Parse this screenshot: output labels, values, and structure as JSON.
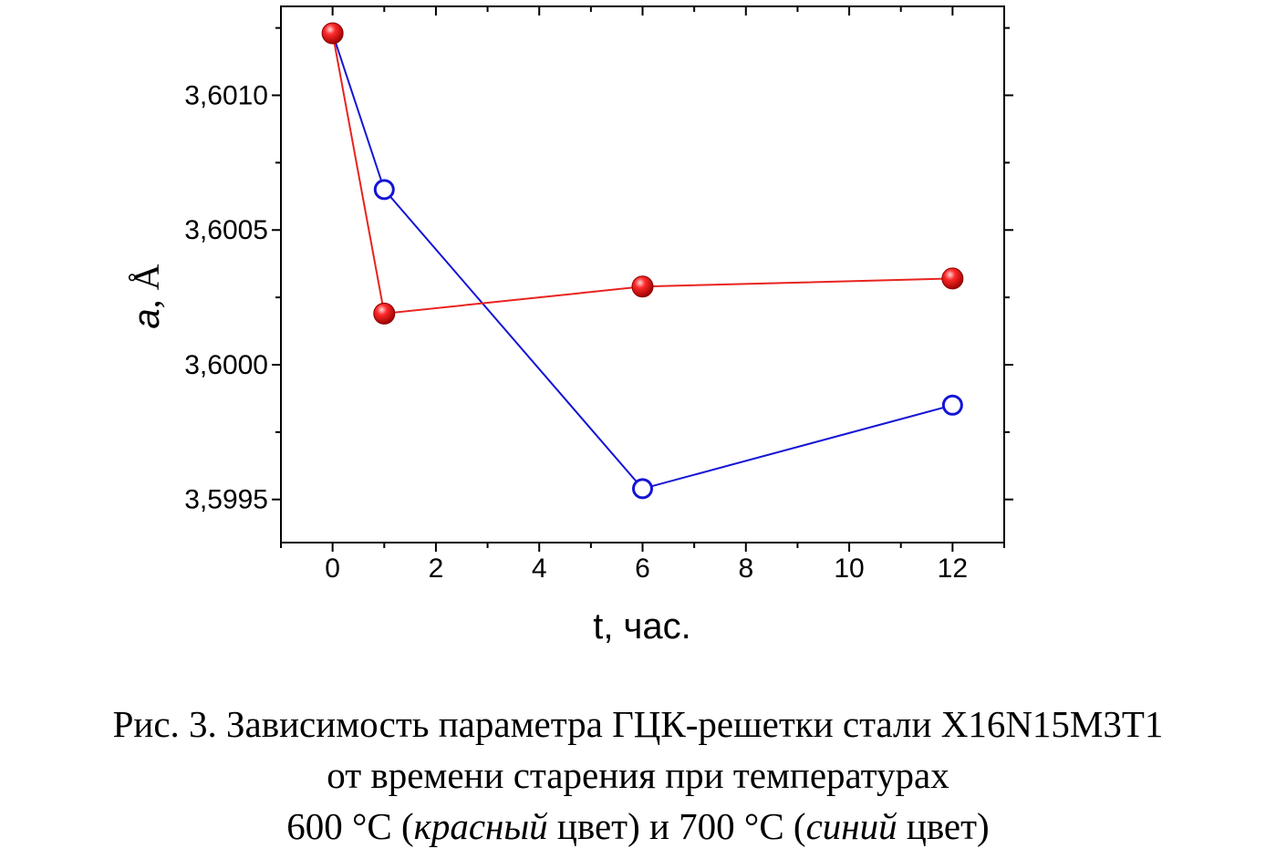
{
  "chart_data": {
    "type": "line",
    "xlabel": "t, час.",
    "ylabel_italic": "a",
    "ylabel_rest": ", Å",
    "xlim": [
      -1,
      13
    ],
    "ylim": [
      3.59934,
      3.60133
    ],
    "x_ticks": [
      0,
      2,
      4,
      6,
      8,
      10,
      12
    ],
    "x_tick_labels": [
      "0",
      "2",
      "4",
      "6",
      "8",
      "10",
      "12"
    ],
    "y_ticks": [
      3.5995,
      3.6,
      3.6005,
      3.601
    ],
    "y_tick_labels": [
      "3,5995",
      "3,6000",
      "3,6005",
      "3,6010"
    ],
    "grid": false,
    "series": [
      {
        "color": "#e8231f",
        "marker": "filled-sphere",
        "x": [
          0,
          1,
          6,
          12
        ],
        "y": [
          3.60123,
          3.60019,
          3.60029,
          3.60032
        ]
      },
      {
        "color": "#1414d6",
        "marker": "open-circle",
        "x": [
          1,
          6,
          12
        ],
        "y": [
          3.60065,
          3.59954,
          3.59985
        ]
      }
    ],
    "blue_line_start": {
      "x": 0,
      "y": 3.60123
    }
  },
  "caption": {
    "line1": "Рис. 3. Зависимость параметра ГЦК-решетки стали X16N15M3T1",
    "line2": "от времени старения при температурах",
    "line3_a": "600 °С (",
    "line3_b": "красный",
    "line3_c": " цвет) и 700 °С (",
    "line3_d": "синий",
    "line3_e": " цвет)"
  }
}
